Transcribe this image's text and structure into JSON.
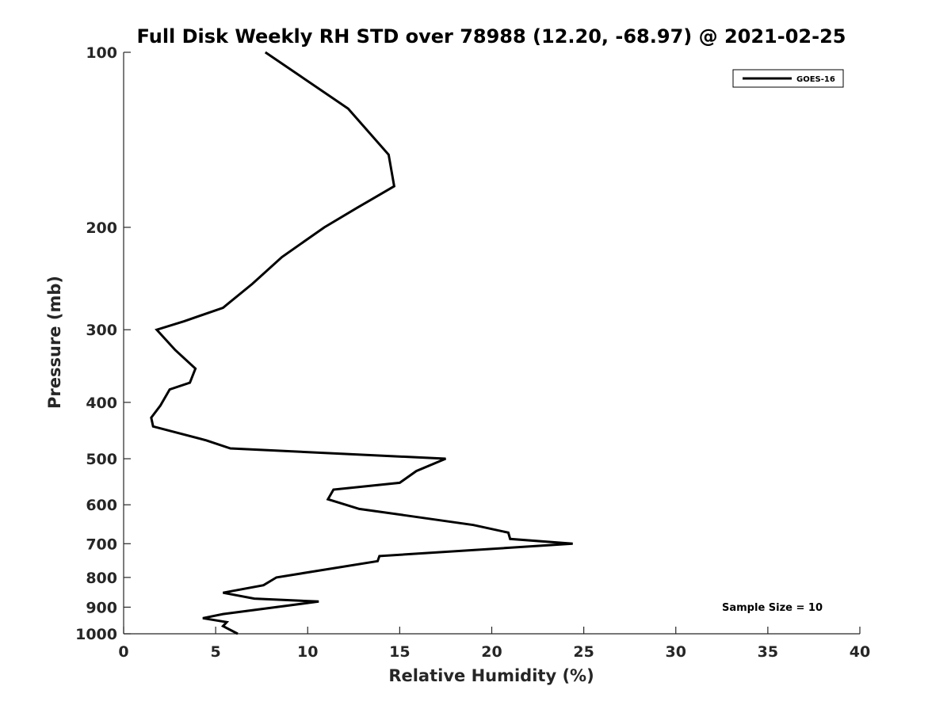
{
  "chart_data": {
    "type": "line",
    "title": "Full Disk Weekly RH STD over 78988 (12.20, -68.97) @ 2021-02-25",
    "xlabel": "Relative Humidity (%)",
    "ylabel": "Pressure (mb)",
    "xlim": [
      0,
      40
    ],
    "ylim": [
      100,
      1000
    ],
    "y_scale": "log",
    "y_reversed": true,
    "grid": false,
    "legend_position": "top-right",
    "x_ticks": [
      "0",
      "5",
      "10",
      "15",
      "20",
      "25",
      "30",
      "35",
      "40"
    ],
    "y_ticks": [
      "100",
      "200",
      "300",
      "400",
      "500",
      "600",
      "700",
      "800",
      "900",
      "1000"
    ],
    "series": [
      {
        "name": "GOES-16",
        "color": "#000000",
        "points": [
          [
            7.7,
            100
          ],
          [
            12.2,
            125
          ],
          [
            14.4,
            150
          ],
          [
            14.7,
            170
          ],
          [
            12.7,
            185
          ],
          [
            10.9,
            200
          ],
          [
            8.6,
            225
          ],
          [
            7.0,
            250
          ],
          [
            5.4,
            275
          ],
          [
            3.3,
            290
          ],
          [
            1.8,
            300
          ],
          [
            2.8,
            325
          ],
          [
            3.9,
            350
          ],
          [
            3.6,
            370
          ],
          [
            2.5,
            380
          ],
          [
            2.0,
            405
          ],
          [
            1.5,
            425
          ],
          [
            1.6,
            440
          ],
          [
            4.5,
            465
          ],
          [
            5.8,
            480
          ],
          [
            17.5,
            500
          ],
          [
            15.9,
            525
          ],
          [
            15.0,
            550
          ],
          [
            11.4,
            565
          ],
          [
            11.1,
            587
          ],
          [
            12.8,
            610
          ],
          [
            15.2,
            625
          ],
          [
            19.0,
            650
          ],
          [
            20.9,
            670
          ],
          [
            21.0,
            687
          ],
          [
            24.4,
            700
          ],
          [
            13.9,
            735
          ],
          [
            13.8,
            750
          ],
          [
            8.3,
            800
          ],
          [
            7.6,
            825
          ],
          [
            5.4,
            850
          ],
          [
            7.1,
            870
          ],
          [
            10.6,
            880
          ],
          [
            5.4,
            925
          ],
          [
            4.3,
            940
          ],
          [
            5.6,
            955
          ],
          [
            5.4,
            970
          ],
          [
            6.2,
            1000
          ]
        ]
      }
    ],
    "annotations": [
      "Sample Size = 10"
    ]
  }
}
